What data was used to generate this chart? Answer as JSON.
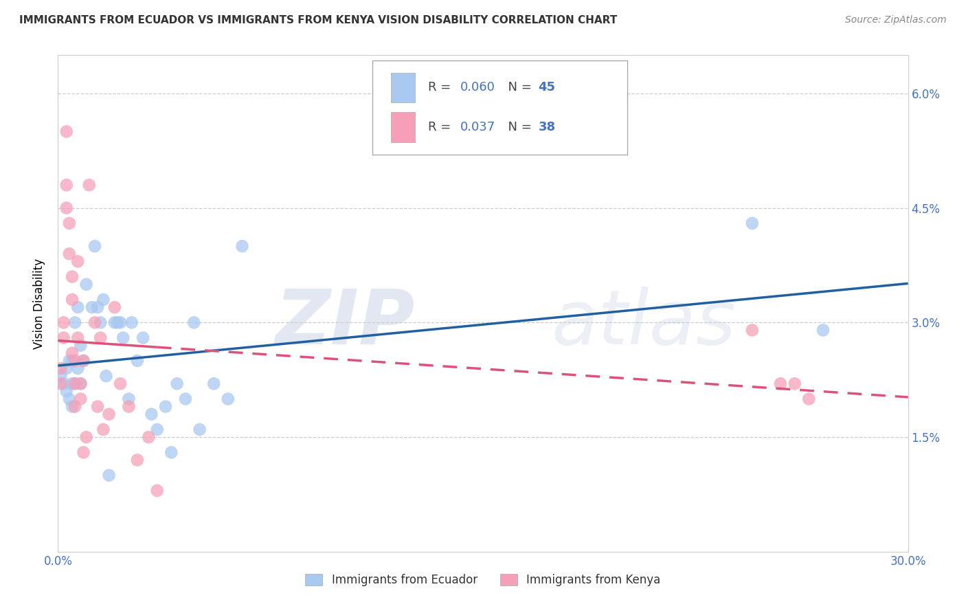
{
  "title": "IMMIGRANTS FROM ECUADOR VS IMMIGRANTS FROM KENYA VISION DISABILITY CORRELATION CHART",
  "source": "Source: ZipAtlas.com",
  "ylabel": "Vision Disability",
  "xlim": [
    0.0,
    0.3
  ],
  "ylim": [
    0.0,
    0.065
  ],
  "xlabel_ticks": [
    "0.0%",
    "30.0%"
  ],
  "xlabel_vals": [
    0.0,
    0.3
  ],
  "ylabel_ticks": [
    "1.5%",
    "3.0%",
    "4.5%",
    "6.0%"
  ],
  "ylabel_vals": [
    0.015,
    0.03,
    0.045,
    0.06
  ],
  "legend_r_ecuador": "0.060",
  "legend_n_ecuador": "45",
  "legend_r_kenya": "0.037",
  "legend_n_kenya": "38",
  "ecuador_color": "#a8c8f0",
  "kenya_color": "#f5a0b8",
  "ecuador_line_color": "#2060a0",
  "kenya_line_color": "#e0507a",
  "ecuador_x": [
    0.001,
    0.002,
    0.003,
    0.003,
    0.004,
    0.004,
    0.005,
    0.005,
    0.005,
    0.006,
    0.006,
    0.007,
    0.007,
    0.008,
    0.008,
    0.009,
    0.01,
    0.012,
    0.013,
    0.014,
    0.015,
    0.016,
    0.017,
    0.018,
    0.02,
    0.021,
    0.022,
    0.023,
    0.025,
    0.026,
    0.028,
    0.03,
    0.033,
    0.035,
    0.038,
    0.04,
    0.042,
    0.045,
    0.048,
    0.05,
    0.055,
    0.06,
    0.065,
    0.245,
    0.27
  ],
  "ecuador_y": [
    0.023,
    0.022,
    0.024,
    0.021,
    0.025,
    0.02,
    0.025,
    0.022,
    0.019,
    0.03,
    0.022,
    0.032,
    0.024,
    0.027,
    0.022,
    0.025,
    0.035,
    0.032,
    0.04,
    0.032,
    0.03,
    0.033,
    0.023,
    0.01,
    0.03,
    0.03,
    0.03,
    0.028,
    0.02,
    0.03,
    0.025,
    0.028,
    0.018,
    0.016,
    0.019,
    0.013,
    0.022,
    0.02,
    0.03,
    0.016,
    0.022,
    0.02,
    0.04,
    0.043,
    0.029
  ],
  "kenya_x": [
    0.001,
    0.001,
    0.002,
    0.002,
    0.003,
    0.003,
    0.003,
    0.004,
    0.004,
    0.005,
    0.005,
    0.005,
    0.006,
    0.006,
    0.006,
    0.007,
    0.007,
    0.008,
    0.008,
    0.009,
    0.009,
    0.01,
    0.011,
    0.013,
    0.014,
    0.015,
    0.016,
    0.018,
    0.02,
    0.022,
    0.025,
    0.028,
    0.032,
    0.035,
    0.245,
    0.255,
    0.26,
    0.265
  ],
  "kenya_y": [
    0.024,
    0.022,
    0.03,
    0.028,
    0.055,
    0.048,
    0.045,
    0.043,
    0.039,
    0.033,
    0.036,
    0.026,
    0.025,
    0.022,
    0.019,
    0.028,
    0.038,
    0.022,
    0.02,
    0.025,
    0.013,
    0.015,
    0.048,
    0.03,
    0.019,
    0.028,
    0.016,
    0.018,
    0.032,
    0.022,
    0.019,
    0.012,
    0.015,
    0.008,
    0.029,
    0.022,
    0.022,
    0.02
  ],
  "watermark_zip": "ZIP",
  "watermark_atlas": "atlas",
  "background_color": "#ffffff",
  "grid_color": "#cccccc",
  "grid_linestyle": "--"
}
